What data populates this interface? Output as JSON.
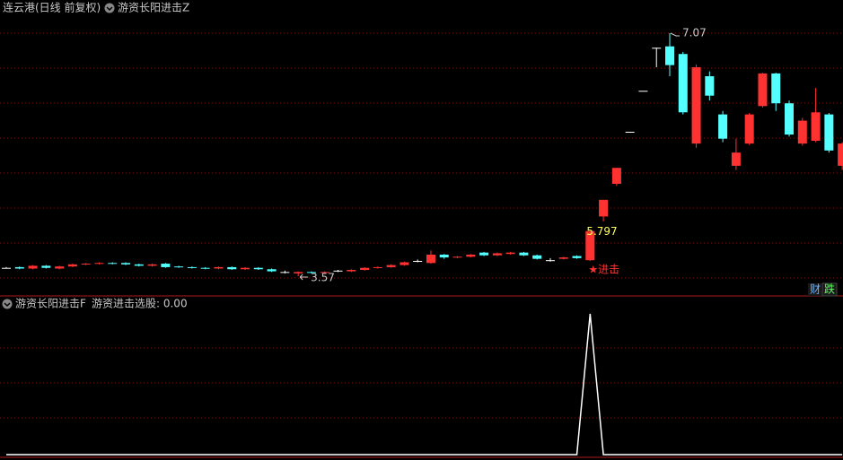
{
  "chart_data": [
    {
      "type": "candlestick",
      "title": "连云港(日线 前复权)",
      "indicator": "游资长阳进击Z",
      "up_color": "#ff3232",
      "down_color": "#54ffff",
      "flat_color": "#ffffff",
      "open": [
        3.69,
        3.7,
        3.68,
        3.72,
        3.68,
        3.71,
        3.74,
        3.75,
        3.76,
        3.76,
        3.74,
        3.72,
        3.75,
        3.71,
        3.7,
        3.69,
        3.68,
        3.7,
        3.67,
        3.69,
        3.67,
        3.63,
        3.61,
        3.63,
        3.62,
        3.65,
        3.64,
        3.66,
        3.69,
        3.7,
        3.73,
        3.79,
        3.76,
        3.88,
        3.84,
        3.85,
        3.91,
        3.87,
        3.89,
        3.91,
        3.87,
        3.8,
        3.82,
        3.86,
        3.8,
        4.43,
        4.9,
        5.65,
        6.24,
        6.86,
        6.88,
        6.77,
        5.48,
        6.45,
        5.9,
        5.16,
        5.48,
        6.02,
        6.49,
        6.06,
        5.48,
        5.52,
        5.9,
        5.16
      ],
      "high": [
        3.7,
        3.71,
        3.73,
        3.73,
        3.72,
        3.75,
        3.76,
        3.77,
        3.77,
        3.77,
        3.75,
        3.75,
        3.76,
        3.72,
        3.71,
        3.7,
        3.71,
        3.71,
        3.7,
        3.7,
        3.68,
        3.65,
        3.64,
        3.64,
        3.64,
        3.66,
        3.67,
        3.7,
        3.71,
        3.74,
        3.78,
        3.81,
        3.94,
        3.89,
        3.86,
        3.89,
        3.92,
        3.91,
        3.92,
        3.92,
        3.88,
        3.83,
        3.85,
        3.87,
        4.22,
        4.67,
        5.13,
        5.65,
        6.24,
        6.86,
        7.07,
        6.8,
        6.62,
        6.52,
        5.95,
        5.55,
        5.92,
        6.5,
        6.5,
        6.1,
        5.85,
        6.28,
        5.92,
        5.5
      ],
      "low": [
        3.68,
        3.67,
        3.67,
        3.68,
        3.67,
        3.7,
        3.73,
        3.74,
        3.74,
        3.73,
        3.71,
        3.71,
        3.69,
        3.69,
        3.68,
        3.67,
        3.67,
        3.66,
        3.66,
        3.66,
        3.63,
        3.61,
        3.57,
        3.61,
        3.61,
        3.63,
        3.63,
        3.65,
        3.68,
        3.69,
        3.72,
        3.77,
        3.75,
        3.82,
        3.83,
        3.84,
        3.86,
        3.86,
        3.88,
        3.86,
        3.81,
        3.78,
        3.81,
        3.82,
        3.79,
        4.36,
        4.87,
        5.65,
        6.24,
        6.58,
        6.45,
        5.9,
        5.42,
        6.1,
        5.5,
        5.1,
        5.46,
        6.0,
        5.95,
        5.58,
        5.45,
        5.5,
        5.35,
        5.1
      ],
      "close": [
        3.69,
        3.68,
        3.72,
        3.69,
        3.71,
        3.74,
        3.75,
        3.76,
        3.75,
        3.74,
        3.72,
        3.74,
        3.7,
        3.7,
        3.69,
        3.68,
        3.7,
        3.67,
        3.69,
        3.67,
        3.64,
        3.63,
        3.63,
        3.62,
        3.63,
        3.65,
        3.66,
        3.69,
        3.7,
        3.73,
        3.77,
        3.79,
        3.88,
        3.84,
        3.85,
        3.88,
        3.87,
        3.9,
        3.91,
        3.87,
        3.82,
        3.8,
        3.84,
        3.83,
        4.22,
        4.67,
        5.13,
        5.65,
        6.24,
        6.86,
        6.61,
        5.93,
        6.58,
        6.17,
        5.55,
        5.35,
        5.9,
        6.49,
        6.06,
        5.61,
        5.81,
        5.93,
        5.38,
        5.48
      ],
      "signal_value": 5.797,
      "signal_label": "★进击",
      "tags": [
        "财",
        "跌"
      ]
    },
    {
      "type": "line",
      "title": "游资长阳进击F",
      "legend": "游资进击选股: 0.00",
      "color": "#ffffff",
      "values": [
        0,
        0,
        0,
        0,
        0,
        0,
        0,
        0,
        0,
        0,
        0,
        0,
        0,
        0,
        0,
        0,
        0,
        0,
        0,
        0,
        0,
        0,
        0,
        0,
        0,
        0,
        0,
        0,
        0,
        0,
        0,
        0,
        0,
        0,
        0,
        0,
        0,
        0,
        0,
        0,
        0,
        0,
        0,
        0,
        1,
        0,
        0,
        0,
        0,
        0,
        0,
        0,
        0,
        0,
        0,
        0,
        0,
        0,
        0,
        0,
        0,
        0,
        0,
        0
      ]
    }
  ]
}
